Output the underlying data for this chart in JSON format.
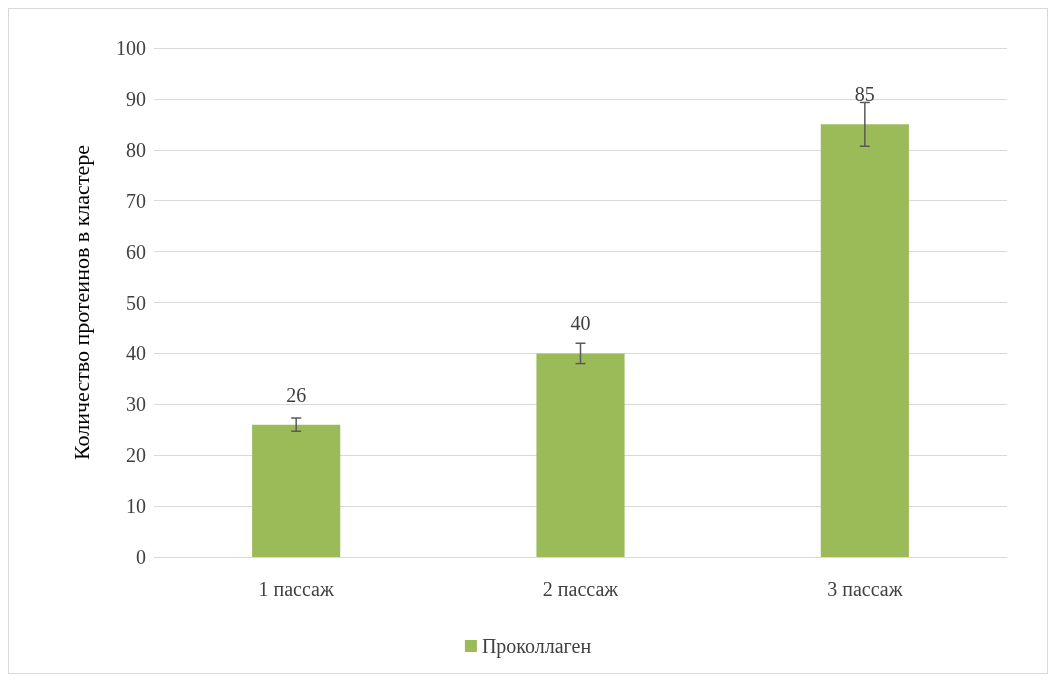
{
  "chart_data": {
    "type": "bar",
    "ylabel": "Количество протеинов в кластере",
    "categories": [
      "1 пассаж",
      "2 пассаж",
      "3 пассаж"
    ],
    "series": [
      {
        "name": "Проколлаген",
        "color": "#9bbb59",
        "values": [
          26,
          40,
          85
        ],
        "errors": [
          1.3,
          2,
          4.3
        ]
      }
    ],
    "ylim": [
      0,
      100
    ],
    "yticks": [
      0,
      10,
      20,
      30,
      40,
      50,
      60,
      70,
      80,
      90,
      100
    ],
    "grid": "y",
    "legend": "bottom",
    "data_labels": true
  }
}
